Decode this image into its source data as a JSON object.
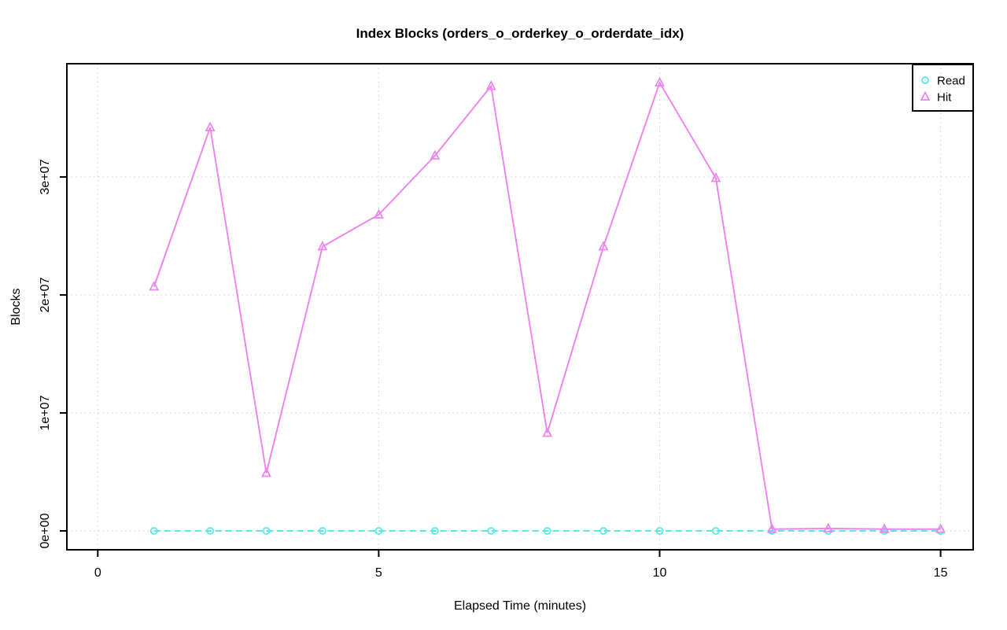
{
  "window": {
    "background": "#FFFFFF",
    "foreground": "#000000"
  },
  "chart_data": {
    "type": "line",
    "title": "Index Blocks (orders_o_orderkey_o_orderdate_idx)",
    "xlabel": "Elapsed Time (minutes)",
    "ylabel": "Blocks",
    "xlim": [
      -0.55,
      15.58
    ],
    "ylim": [
      -1600000,
      39600000
    ],
    "grid": "dotted",
    "grid_color": "#C6C6C6",
    "legend_position": "top-right",
    "x_ticks": {
      "values": [
        0,
        5,
        10,
        15
      ],
      "labels": [
        "0",
        "5",
        "10",
        "15"
      ]
    },
    "y_ticks": {
      "values": [
        0,
        10000000,
        20000000,
        30000000
      ],
      "labels": [
        "0e+00",
        "1e+07",
        "2e+07",
        "3e+07"
      ]
    },
    "x": [
      1,
      2,
      3,
      4,
      5,
      6,
      7,
      8,
      9,
      10,
      11,
      12,
      13,
      14,
      15
    ],
    "series": [
      {
        "name": "Read",
        "color": "#58E8E8",
        "marker": "circle",
        "line_style": "dashed",
        "values": [
          0,
          0,
          0,
          0,
          0,
          0,
          0,
          0,
          0,
          0,
          0,
          0,
          0,
          0,
          0
        ]
      },
      {
        "name": "Hit",
        "color": "#EE82EE",
        "marker": "triangle",
        "line_style": "solid",
        "values": [
          20700000,
          34200000,
          4900000,
          24100000,
          26800000,
          31800000,
          37700000,
          8300000,
          24100000,
          38000000,
          29900000,
          150000,
          200000,
          150000,
          150000
        ]
      }
    ]
  }
}
